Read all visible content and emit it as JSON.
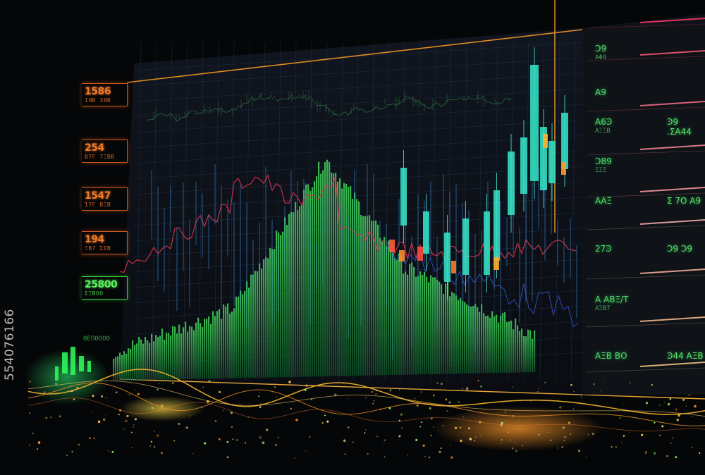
{
  "left_labels": [
    {
      "value": "1586",
      "sub": "1ЯВ ЗЯВ"
    },
    {
      "value": "254",
      "sub": "Β7Γ 7ΞΒΒ"
    },
    {
      "value": "1547",
      "sub": "Ί7Γ ΒΞΒ"
    },
    {
      "value": "194",
      "sub": "ΞΒ7 ΣΣΒ"
    },
    {
      "value": "25800",
      "sub": "ΣΞΒΟΟ"
    }
  ],
  "footer_label": "ΘΕΠΘΟΟΘ",
  "right_rows": [
    {
      "a": "Ͻ9",
      "b": "",
      "sub": "ΑΦ8"
    },
    {
      "a": "Α9",
      "b": "",
      "sub": ""
    },
    {
      "a": "Α6Ͽ",
      "b": "Ͽ9 .ΣΑ44",
      "sub": "ΑΞΞΒ"
    },
    {
      "a": "Ͻ89",
      "b": "",
      "sub": "ΞΞΞ"
    },
    {
      "a": "ΑΑΞ",
      "b": "Σ 7Ο Α9",
      "sub": ""
    },
    {
      "a": "27Ͽ",
      "b": "Ͻ9 Ͻ9",
      "sub": ""
    },
    {
      "a": "Α ΑΒΞ/Τ",
      "b": "",
      "sub": "ΑΞΒ7"
    },
    {
      "a": "ΑΞΒ ΒΟ",
      "b": "Ͽ44 ΑΞΒ",
      "sub": ""
    }
  ],
  "watermark": "554076166",
  "colors": {
    "background": "#050607",
    "candle_cyan": "#35e0c6",
    "volume_green": "#2fae4a",
    "label_orange": "#f07a2c",
    "trend_red": "#d8314f",
    "wave_gold": "#f2b12a"
  }
}
